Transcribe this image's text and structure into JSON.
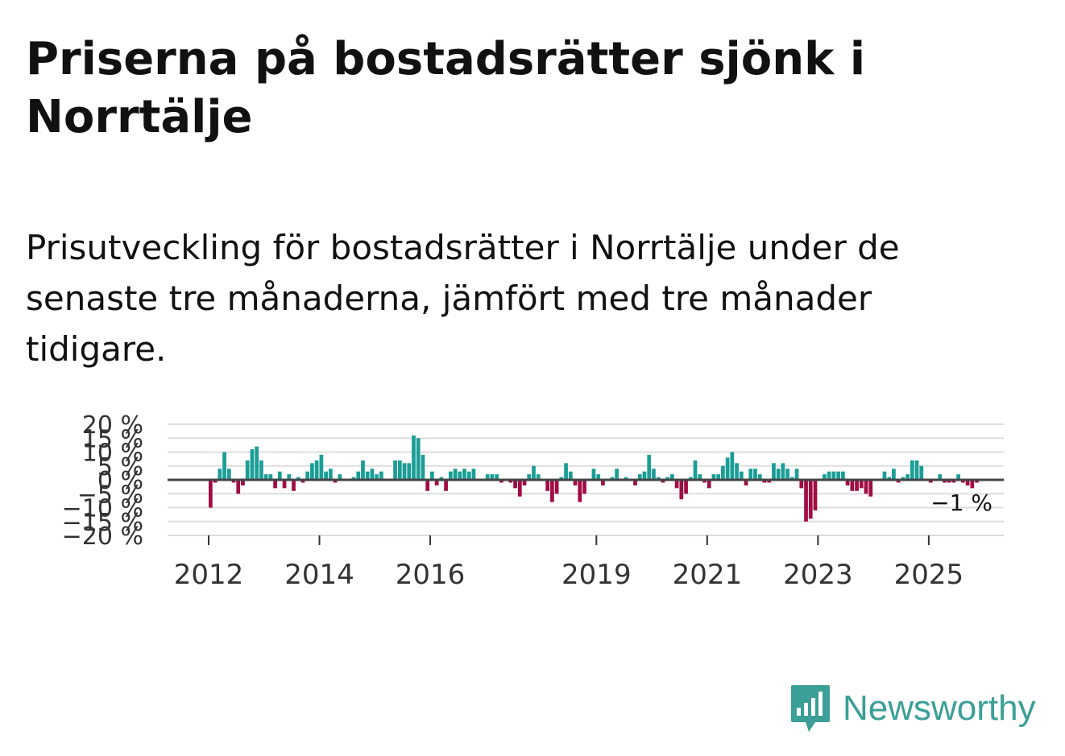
{
  "title": "Priserna på bostadsrätter sjönk i Norrtälje",
  "subtitle": "Prisutveckling för bostadsrätter i Norrtälje under de senaste tre månaderna, jämfört med tre månader tidigare.",
  "brand": {
    "name": "Newsworthy"
  },
  "colors": {
    "positive": "#1a9e96",
    "negative": "#a10c44",
    "grid": "#dddddd",
    "zero": "#444444"
  },
  "chart_data": {
    "type": "bar",
    "title": "Prisutveckling för bostadsrätter i Norrtälje",
    "xlabel": "",
    "ylabel": "",
    "unit": "%",
    "ylim": [
      -20,
      20
    ],
    "x_start": {
      "year": 2012,
      "month": 1
    },
    "y_ticks": [
      {
        "value": 20,
        "label": "20 %"
      },
      {
        "value": 15,
        "label": "15 %"
      },
      {
        "value": 10,
        "label": "10 %"
      },
      {
        "value": 5,
        "label": "5 %"
      },
      {
        "value": 0,
        "label": "0 %"
      },
      {
        "value": -5,
        "label": "−5 %"
      },
      {
        "value": -10,
        "label": "−10 %"
      },
      {
        "value": -15,
        "label": "−15 %"
      },
      {
        "value": -20,
        "label": "−20 %"
      }
    ],
    "x_ticks": [
      {
        "year": 2012,
        "label": "2012"
      },
      {
        "year": 2014,
        "label": "2014"
      },
      {
        "year": 2016,
        "label": "2016"
      },
      {
        "year": 2019,
        "label": "2019"
      },
      {
        "year": 2021,
        "label": "2021"
      },
      {
        "year": 2023,
        "label": "2023"
      },
      {
        "year": 2025,
        "label": "2025"
      }
    ],
    "last_value_label": "−1 %",
    "values": [
      -10,
      -1,
      4,
      10,
      4,
      -1,
      -5,
      -2,
      7,
      11,
      12,
      7,
      2,
      2,
      -3,
      3,
      -3,
      2,
      -4,
      1,
      -1,
      3,
      6,
      7,
      9,
      3,
      4,
      -1,
      2,
      0,
      0,
      1,
      3,
      7,
      3,
      4,
      2,
      3,
      0,
      0,
      7,
      7,
      6,
      6,
      16,
      15,
      9,
      -4,
      3,
      -2,
      1,
      -4,
      3,
      4,
      3,
      4,
      3,
      4,
      0,
      0,
      2,
      2,
      2,
      -1,
      0,
      -1,
      -3,
      -6,
      -2,
      2,
      5,
      2,
      0,
      -4,
      -8,
      -5,
      1,
      6,
      3,
      -2,
      -8,
      -5,
      0,
      4,
      2,
      -2,
      0,
      1,
      4,
      0,
      1,
      0,
      -2,
      2,
      3,
      9,
      4,
      1,
      -1,
      1,
      2,
      -3,
      -7,
      -5,
      1,
      7,
      2,
      -1,
      -3,
      2,
      2,
      5,
      8,
      10,
      6,
      3,
      -2,
      4,
      4,
      2,
      -1,
      -1,
      6,
      4,
      6,
      4,
      1,
      4,
      -3,
      -15,
      -14,
      -11,
      0,
      2,
      3,
      3,
      3,
      3,
      -2,
      -4,
      -4,
      -3,
      -5,
      -6,
      0,
      0,
      3,
      1,
      4,
      -1,
      1,
      2,
      7,
      7,
      5,
      0,
      -1,
      0,
      2,
      -1,
      -1,
      -1,
      2,
      -1,
      -2,
      -3,
      -1
    ]
  }
}
